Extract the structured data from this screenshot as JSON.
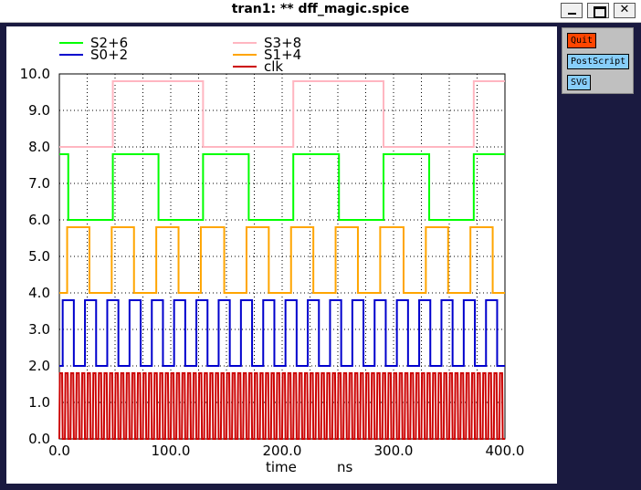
{
  "window": {
    "title": "tran1: ** dff_magic.spice",
    "minimize_glyph": "",
    "close_glyph": "✕"
  },
  "buttons": {
    "quit": "Quit",
    "postscript": "PostScript",
    "svg": "SVG"
  },
  "colors": {
    "background": "#1a1a40",
    "plot_bg": "#ffffff",
    "quit_button": "#ff4500",
    "export_button": "#87cefa"
  },
  "chart_data": {
    "type": "line",
    "title": "",
    "xlabel": "time",
    "xunit": "ns",
    "ylabel": "",
    "xlim": [
      0,
      400
    ],
    "ylim": [
      0,
      10
    ],
    "x_ticks": [
      "0.0",
      "100.0",
      "200.0",
      "300.0",
      "400.0"
    ],
    "y_ticks": [
      "0.0",
      "1.0",
      "2.0",
      "3.0",
      "4.0",
      "5.0",
      "6.0",
      "7.0",
      "8.0",
      "9.0",
      "10.0"
    ],
    "grid": true,
    "legend_position": "top",
    "series": [
      {
        "name": "S2+6",
        "color": "#00ff00",
        "low": 6.0,
        "high": 7.8,
        "segments": [
          [
            0,
            8,
            7.8
          ],
          [
            8,
            48,
            6.0
          ],
          [
            48,
            89,
            7.8
          ],
          [
            89,
            129,
            6.0
          ],
          [
            129,
            170,
            7.8
          ],
          [
            170,
            210,
            6.0
          ],
          [
            210,
            251,
            7.8
          ],
          [
            251,
            291,
            6.0
          ],
          [
            291,
            332,
            7.8
          ],
          [
            332,
            372,
            6.0
          ],
          [
            372,
            400,
            7.8
          ]
        ]
      },
      {
        "name": "S0+2",
        "color": "#0000cd",
        "low": 2.0,
        "high": 3.8,
        "segments": [
          [
            0,
            3,
            2.0
          ],
          [
            3,
            13,
            3.8
          ],
          [
            13,
            23,
            2.0
          ],
          [
            23,
            33,
            3.8
          ],
          [
            33,
            43,
            2.0
          ],
          [
            43,
            53,
            3.8
          ],
          [
            53,
            63,
            2.0
          ],
          [
            63,
            73,
            3.8
          ],
          [
            73,
            83,
            2.0
          ],
          [
            83,
            93,
            3.8
          ],
          [
            93,
            103,
            2.0
          ],
          [
            103,
            113,
            3.8
          ],
          [
            113,
            123,
            2.0
          ],
          [
            123,
            133,
            3.8
          ],
          [
            133,
            143,
            2.0
          ],
          [
            143,
            153,
            3.8
          ],
          [
            153,
            163,
            2.0
          ],
          [
            163,
            173,
            3.8
          ],
          [
            173,
            183,
            2.0
          ],
          [
            183,
            193,
            3.8
          ],
          [
            193,
            203,
            2.0
          ],
          [
            203,
            213,
            3.8
          ],
          [
            213,
            223,
            2.0
          ],
          [
            223,
            233,
            3.8
          ],
          [
            233,
            243,
            2.0
          ],
          [
            243,
            253,
            3.8
          ],
          [
            253,
            263,
            2.0
          ],
          [
            263,
            273,
            3.8
          ],
          [
            273,
            283,
            2.0
          ],
          [
            283,
            293,
            3.8
          ],
          [
            293,
            303,
            2.0
          ],
          [
            303,
            313,
            3.8
          ],
          [
            313,
            323,
            2.0
          ],
          [
            323,
            333,
            3.8
          ],
          [
            333,
            343,
            2.0
          ],
          [
            343,
            353,
            3.8
          ],
          [
            353,
            363,
            2.0
          ],
          [
            363,
            373,
            3.8
          ],
          [
            373,
            383,
            2.0
          ],
          [
            383,
            393,
            3.8
          ],
          [
            393,
            400,
            2.0
          ]
        ]
      },
      {
        "name": "S3+8",
        "color": "#ffb6c1",
        "low": 8.0,
        "high": 9.8,
        "segments": [
          [
            0,
            48,
            8.0
          ],
          [
            48,
            129,
            9.8
          ],
          [
            129,
            210,
            8.0
          ],
          [
            210,
            291,
            9.8
          ],
          [
            291,
            372,
            8.0
          ],
          [
            372,
            400,
            9.8
          ]
        ]
      },
      {
        "name": "S1+4",
        "color": "#ffa500",
        "low": 4.0,
        "high": 5.8,
        "segments": [
          [
            0,
            7,
            4.0
          ],
          [
            7,
            27,
            5.8
          ],
          [
            27,
            47,
            4.0
          ],
          [
            47,
            67,
            5.8
          ],
          [
            67,
            87,
            4.0
          ],
          [
            87,
            107,
            5.8
          ],
          [
            107,
            127,
            4.0
          ],
          [
            127,
            148,
            5.8
          ],
          [
            148,
            168,
            4.0
          ],
          [
            168,
            188,
            5.8
          ],
          [
            188,
            208,
            4.0
          ],
          [
            208,
            228,
            5.8
          ],
          [
            228,
            248,
            4.0
          ],
          [
            248,
            268,
            5.8
          ],
          [
            268,
            288,
            4.0
          ],
          [
            288,
            309,
            5.8
          ],
          [
            309,
            329,
            4.0
          ],
          [
            329,
            349,
            5.8
          ],
          [
            349,
            369,
            4.0
          ],
          [
            369,
            389,
            5.8
          ],
          [
            389,
            400,
            4.0
          ]
        ]
      },
      {
        "name": "clk",
        "color": "#cc0000",
        "low": 0.0,
        "high": 1.8,
        "clock": {
          "start": 0,
          "period": 5.0,
          "duty": 0.5,
          "rise": 0.5,
          "end": 400
        }
      }
    ]
  }
}
